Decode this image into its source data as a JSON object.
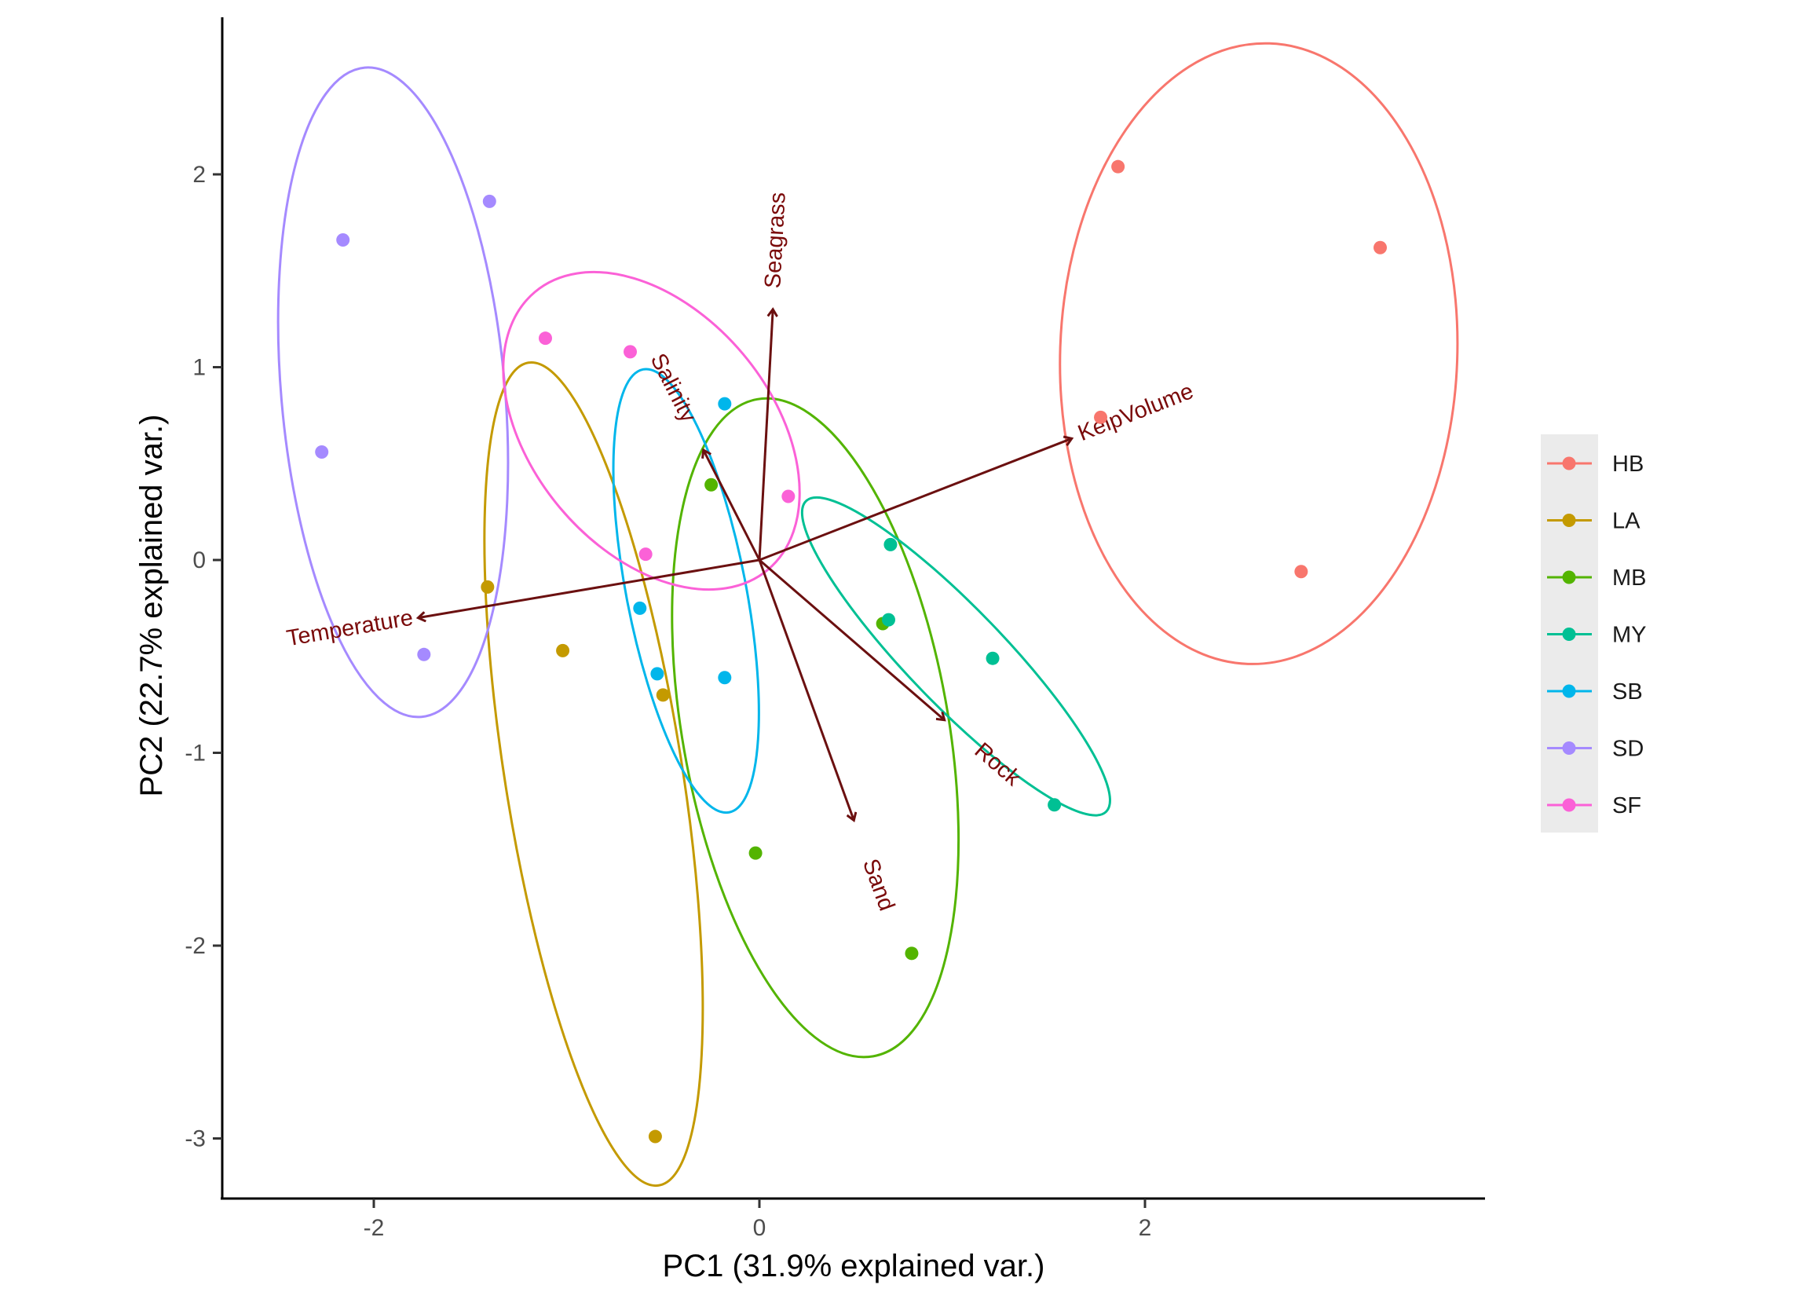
{
  "chart_data": {
    "type": "scatter",
    "title": "",
    "xlabel": "PC1 (31.9% explained var.)",
    "ylabel": "PC2 (22.7% explained var.)",
    "xlim": [
      -2.8,
      3.8
    ],
    "ylim": [
      -3.3,
      2.8
    ],
    "x_ticks": [
      -2,
      0,
      2
    ],
    "y_ticks": [
      -3,
      -2,
      -1,
      0,
      1,
      2
    ],
    "grid": false,
    "legend_position": "right",
    "series": [
      {
        "name": "HB",
        "color": "#F8766D",
        "points": [
          [
            1.86,
            2.04
          ],
          [
            3.22,
            1.62
          ],
          [
            1.77,
            0.74
          ],
          [
            2.81,
            -0.06
          ]
        ],
        "ellipse": {
          "cx": 2.59,
          "cy": 1.07,
          "rx": 1.03,
          "ry": 1.61,
          "angle": 88
        }
      },
      {
        "name": "LA",
        "color": "#C49A00",
        "points": [
          [
            -1.41,
            -0.14
          ],
          [
            -1.02,
            -0.47
          ],
          [
            -0.5,
            -0.7
          ],
          [
            -0.54,
            -2.99
          ]
        ],
        "ellipse": {
          "cx": -0.86,
          "cy": -1.11,
          "rx": 0.46,
          "ry": 2.16,
          "angle": 99
        }
      },
      {
        "name": "MB",
        "color": "#53B400",
        "points": [
          [
            -0.25,
            0.39
          ],
          [
            0.64,
            -0.33
          ],
          [
            -0.02,
            -1.52
          ],
          [
            0.79,
            -2.04
          ]
        ],
        "ellipse": {
          "cx": 0.29,
          "cy": -0.87,
          "rx": 0.69,
          "ry": 1.73,
          "angle": 100
        }
      },
      {
        "name": "MY",
        "color": "#00C094",
        "points": [
          [
            0.68,
            0.08
          ],
          [
            0.67,
            -0.31
          ],
          [
            1.21,
            -0.51
          ],
          [
            1.53,
            -1.27
          ]
        ],
        "ellipse": {
          "cx": 1.02,
          "cy": -0.5,
          "rx": 0.25,
          "ry": 1.12,
          "angle": 134
        }
      },
      {
        "name": "SB",
        "color": "#00B6EB",
        "points": [
          [
            -0.18,
            0.81
          ],
          [
            -0.62,
            -0.25
          ],
          [
            -0.53,
            -0.59
          ],
          [
            -0.18,
            -0.61
          ]
        ],
        "ellipse": {
          "cx": -0.38,
          "cy": -0.16,
          "rx": 0.31,
          "ry": 1.17,
          "angle": 101
        }
      },
      {
        "name": "SD",
        "color": "#A58AFF",
        "points": [
          [
            -1.4,
            1.86
          ],
          [
            -2.16,
            1.66
          ],
          [
            -2.27,
            0.56
          ],
          [
            -1.74,
            -0.49
          ]
        ],
        "ellipse": {
          "cx": -1.9,
          "cy": 0.87,
          "rx": 0.58,
          "ry": 1.69,
          "angle": 95
        }
      },
      {
        "name": "SF",
        "color": "#FB61D7",
        "points": [
          [
            -1.11,
            1.15
          ],
          [
            -0.67,
            1.08
          ],
          [
            0.15,
            0.33
          ],
          [
            -0.59,
            0.03
          ]
        ],
        "ellipse": {
          "cx": -0.56,
          "cy": 0.67,
          "rx": 0.62,
          "ry": 0.94,
          "angle": 130
        }
      }
    ],
    "loadings": [
      {
        "name": "KelpVolume",
        "x": 1.62,
        "y": 0.63
      },
      {
        "name": "Seagrass",
        "x": 0.07,
        "y": 1.3
      },
      {
        "name": "Salinity",
        "x": -0.29,
        "y": 0.57
      },
      {
        "name": "Temperature",
        "x": -1.77,
        "y": -0.3
      },
      {
        "name": "Rock",
        "x": 0.96,
        "y": -0.83
      },
      {
        "name": "Sand",
        "x": 0.49,
        "y": -1.35
      }
    ]
  }
}
